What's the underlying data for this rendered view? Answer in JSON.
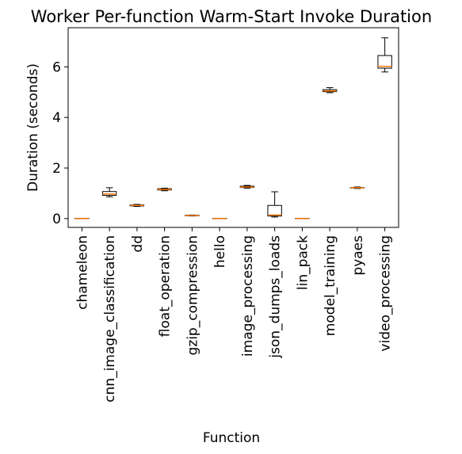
{
  "chart_data": {
    "type": "boxplot",
    "title": "Worker Per-function Warm-Start Invoke Duration",
    "xlabel": "Function",
    "ylabel": "Duration (seconds)",
    "ylim": [
      -0.35,
      7.55
    ],
    "yticks": [
      0,
      2,
      4,
      6
    ],
    "categories": [
      "chameleon",
      "cnn_image_classification",
      "dd",
      "float_operation",
      "gzip_compression",
      "hello",
      "image_processing",
      "json_dumps_loads",
      "lin_pack",
      "model_training",
      "pyaes",
      "video_processing"
    ],
    "boxes": [
      {
        "whisker_low": 0.0,
        "q1": 0.0,
        "median": 0.0,
        "q3": 0.01,
        "whisker_high": 0.01
      },
      {
        "whisker_low": 0.86,
        "q1": 0.92,
        "median": 0.97,
        "q3": 1.07,
        "whisker_high": 1.22
      },
      {
        "whisker_low": 0.48,
        "q1": 0.5,
        "median": 0.52,
        "q3": 0.54,
        "whisker_high": 0.56
      },
      {
        "whisker_low": 1.1,
        "q1": 1.13,
        "median": 1.15,
        "q3": 1.18,
        "whisker_high": 1.2
      },
      {
        "whisker_low": 0.1,
        "q1": 0.11,
        "median": 0.12,
        "q3": 0.13,
        "whisker_high": 0.14
      },
      {
        "whisker_low": 0.0,
        "q1": 0.0,
        "median": 0.0,
        "q3": 0.01,
        "whisker_high": 0.01
      },
      {
        "whisker_low": 1.2,
        "q1": 1.23,
        "median": 1.25,
        "q3": 1.28,
        "whisker_high": 1.31
      },
      {
        "whisker_low": 0.06,
        "q1": 0.1,
        "median": 0.14,
        "q3": 0.52,
        "whisker_high": 1.06
      },
      {
        "whisker_low": 0.0,
        "q1": 0.0,
        "median": 0.0,
        "q3": 0.01,
        "whisker_high": 0.01
      },
      {
        "whisker_low": 4.98,
        "q1": 5.02,
        "median": 5.05,
        "q3": 5.1,
        "whisker_high": 5.18
      },
      {
        "whisker_low": 1.19,
        "q1": 1.21,
        "median": 1.22,
        "q3": 1.23,
        "whisker_high": 1.25
      },
      {
        "whisker_low": 5.8,
        "q1": 5.95,
        "median": 6.02,
        "q3": 6.45,
        "whisker_high": 7.15
      }
    ],
    "colors": {
      "box": "#000000",
      "median": "#ff7f0e"
    },
    "grid": false,
    "legend": "none"
  }
}
